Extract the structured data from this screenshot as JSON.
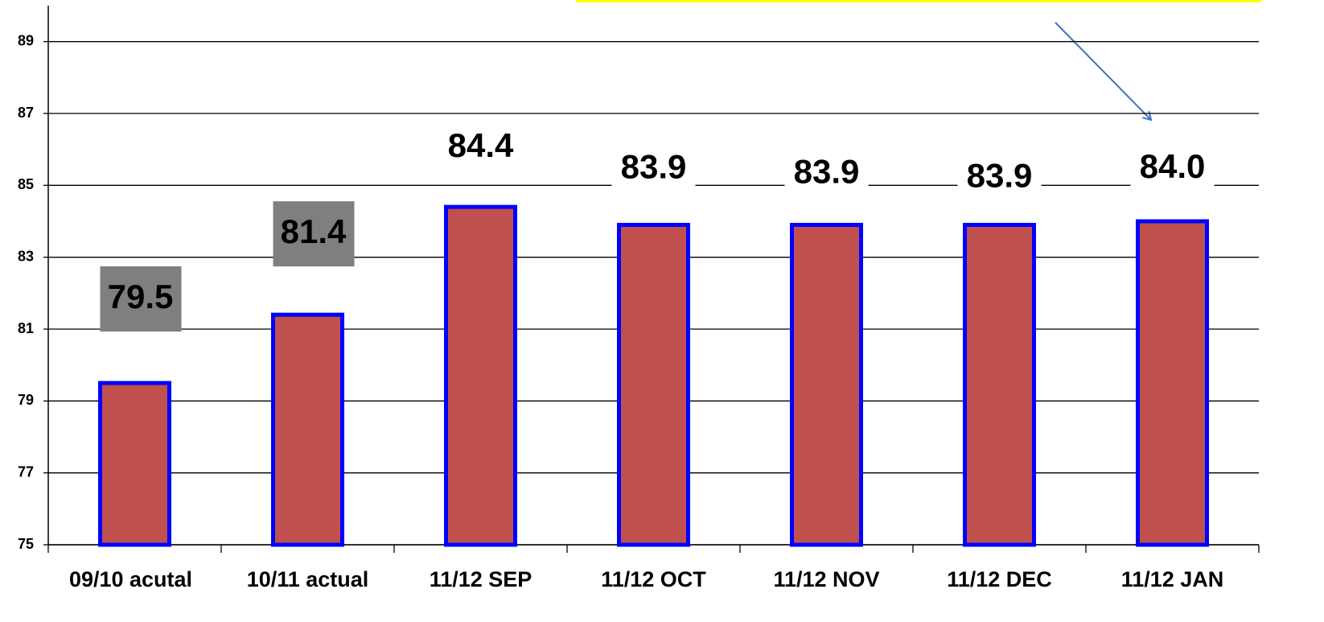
{
  "chart_data": {
    "type": "bar",
    "categories": [
      "09/10 acutal",
      "10/11 actual",
      "11/12 SEP",
      "11/12 OCT",
      "11/12 NOV",
      "11/12 DEC",
      "11/12 JAN"
    ],
    "values": [
      79.5,
      81.4,
      84.4,
      83.9,
      83.9,
      83.9,
      84
    ],
    "value_labels": [
      "79.5",
      "81.4",
      "84.4",
      "83.9",
      "83.9",
      "83.9",
      "84.0"
    ],
    "color": "#c0504d",
    "edge_color": "#0000ff",
    "ylim": [
      75,
      90
    ],
    "yticks": [
      75,
      77,
      79,
      81,
      83,
      85,
      87,
      89
    ],
    "grid": true
  }
}
